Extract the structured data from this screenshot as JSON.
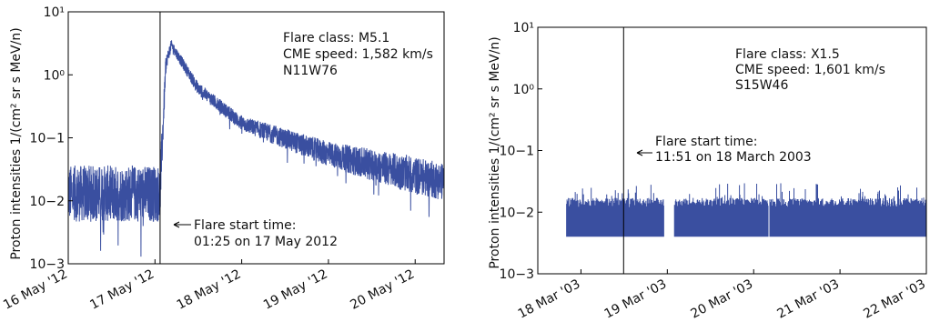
{
  "chart_data": [
    {
      "type": "line",
      "scale_y": "log",
      "ylabel": "Proton intensities 1/(cm² sr s MeV/n)",
      "yticks": [
        {
          "value": 0.001,
          "label": "10−3"
        },
        {
          "value": 0.01,
          "label": "10−2"
        },
        {
          "value": 0.1,
          "label": "10−1"
        },
        {
          "value": 1,
          "label": "10⁰"
        },
        {
          "value": 10,
          "label": "10¹"
        }
      ],
      "ylim": [
        0.001,
        10
      ],
      "xlim": [
        "2012-05-16 00:00",
        "2012-05-20 08:00"
      ],
      "xticks": [
        {
          "value": "2012-05-16",
          "label": "16 May '12"
        },
        {
          "value": "2012-05-17",
          "label": "17 May '12"
        },
        {
          "value": "2012-05-18",
          "label": "18 May '12"
        },
        {
          "value": "2012-05-19",
          "label": "19 May '12"
        },
        {
          "value": "2012-05-20",
          "label": "20 May '12"
        }
      ],
      "color": "#3a4fa0",
      "series_profile": [
        {
          "time": "2012-05-16 00:00",
          "level": 0.013,
          "spread": 0.45
        },
        {
          "time": "2012-05-17 01:24",
          "level": 0.013,
          "spread": 0.45
        },
        {
          "time": "2012-05-17 03:00",
          "level": 1.5,
          "spread": 0.12
        },
        {
          "time": "2012-05-17 04:30",
          "level": 3.0,
          "spread": 0.08
        },
        {
          "time": "2012-05-17 12:00",
          "level": 0.6,
          "spread": 0.1
        },
        {
          "time": "2012-05-18 00:00",
          "level": 0.17,
          "spread": 0.12
        },
        {
          "time": "2012-05-19 00:00",
          "level": 0.055,
          "spread": 0.2
        },
        {
          "time": "2012-05-20 00:00",
          "level": 0.025,
          "spread": 0.3
        },
        {
          "time": "2012-05-20 08:00",
          "level": 0.02,
          "spread": 0.3
        }
      ],
      "flare_start": "2012-05-17 01:25",
      "annotation_lines": [
        "Flare class: M5.1",
        "CME speed: 1,582 km/s",
        "N11W76"
      ],
      "flare_label_lines": [
        "Flare start time:",
        "01:25 on 17 May 2012"
      ]
    },
    {
      "type": "line",
      "scale_y": "log",
      "ylabel": "Proton intensities 1/(cm² sr s MeV/n)",
      "yticks": [
        {
          "value": 0.001,
          "label": "10−3"
        },
        {
          "value": 0.01,
          "label": "10−2"
        },
        {
          "value": 0.1,
          "label": "10−1"
        },
        {
          "value": 1,
          "label": "10⁰"
        },
        {
          "value": 10,
          "label": "10¹"
        }
      ],
      "ylim": [
        0.001,
        10
      ],
      "xlim": [
        "2003-03-17 12:00",
        "2003-03-22 00:00"
      ],
      "xticks": [
        {
          "value": "2003-03-18",
          "label": "18 Mar '03"
        },
        {
          "value": "2003-03-19",
          "label": "19 Mar '03"
        },
        {
          "value": "2003-03-20",
          "label": "20 Mar '03"
        },
        {
          "value": "2003-03-21",
          "label": "21 Mar '03"
        },
        {
          "value": "2003-03-22",
          "label": "22 Mar '03"
        }
      ],
      "color": "#3a4fa0",
      "band": {
        "min": 0.004,
        "max": 0.017,
        "spike_max": 0.03
      },
      "segments": [
        {
          "start": "2003-03-17 20:00",
          "end": "2003-03-18 23:00"
        },
        {
          "start": "2003-03-19 02:00",
          "end": "2003-03-20 04:00"
        },
        {
          "start": "2003-03-20 04:30",
          "end": "2003-03-22 00:00"
        }
      ],
      "flare_start": "2003-03-18 11:51",
      "annotation_lines": [
        "Flare class: X1.5",
        "CME speed: 1,601 km/s",
        "S15W46"
      ],
      "flare_label_lines": [
        "Flare start time:",
        "11:51 on 18 March 2003"
      ]
    }
  ]
}
